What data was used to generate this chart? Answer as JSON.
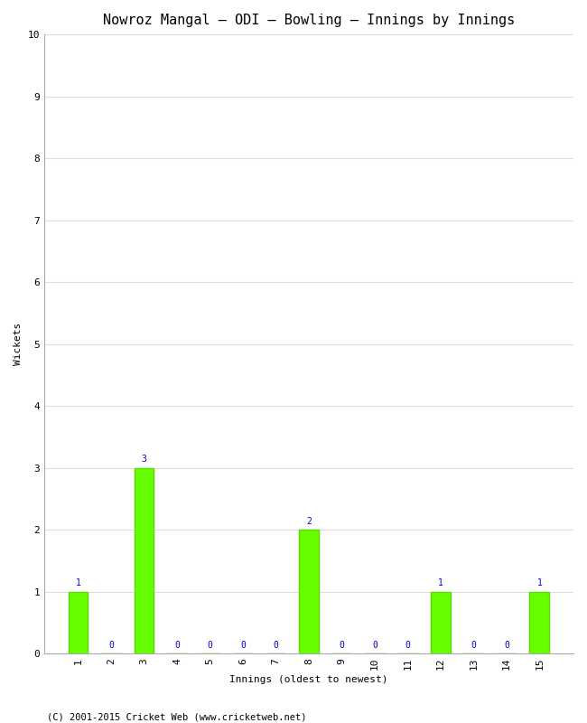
{
  "title": "Nowroz Mangal – ODI – Bowling – Innings by Innings",
  "xlabel": "Innings (oldest to newest)",
  "ylabel": "Wickets",
  "categories": [
    1,
    2,
    3,
    4,
    5,
    6,
    7,
    8,
    9,
    10,
    11,
    12,
    13,
    14,
    15
  ],
  "values": [
    1,
    0,
    3,
    0,
    0,
    0,
    0,
    2,
    0,
    0,
    0,
    1,
    0,
    0,
    1
  ],
  "bar_color": "#66ff00",
  "bar_edge_color": "#55dd00",
  "ylim": [
    0,
    10
  ],
  "yticks": [
    0,
    1,
    2,
    3,
    4,
    5,
    6,
    7,
    8,
    9,
    10
  ],
  "label_color": "#0000cc",
  "label_fontsize": 7,
  "title_fontsize": 11,
  "axis_label_fontsize": 8,
  "tick_fontsize": 8,
  "background_color": "#ffffff",
  "plot_bg_color": "#ffffff",
  "grid_color": "#dddddd",
  "footer": "(C) 2001-2015 Cricket Web (www.cricketweb.net)",
  "footer_fontsize": 7.5
}
